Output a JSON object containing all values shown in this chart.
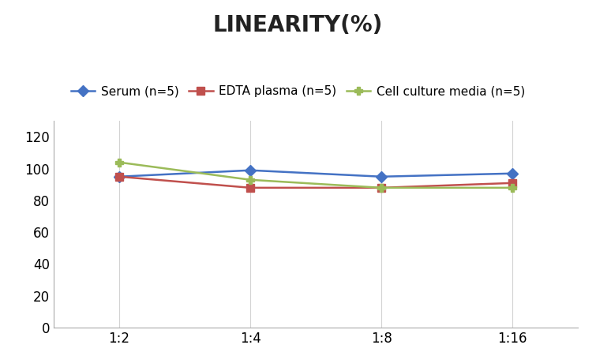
{
  "title": "LINEARITY(%)",
  "x_labels": [
    "1:2",
    "1:4",
    "1:8",
    "1:16"
  ],
  "x_positions": [
    0,
    1,
    2,
    3
  ],
  "series": [
    {
      "label": "Serum (n=5)",
      "color": "#4472C4",
      "marker": "D",
      "markersize": 7,
      "values": [
        95,
        99,
        95,
        97
      ]
    },
    {
      "label": "EDTA plasma (n=5)",
      "color": "#C0504D",
      "marker": "s",
      "markersize": 7,
      "values": [
        95,
        88,
        88,
        91
      ]
    },
    {
      "label": "Cell culture media (n=5)",
      "color": "#9BBB59",
      "marker": "P",
      "markersize": 7,
      "values": [
        104,
        93,
        88,
        88
      ]
    }
  ],
  "ylim": [
    0,
    130
  ],
  "yticks": [
    0,
    20,
    40,
    60,
    80,
    100,
    120
  ],
  "background_color": "#ffffff",
  "title_fontsize": 20,
  "legend_fontsize": 11,
  "tick_fontsize": 12,
  "grid_color": "#d3d3d3"
}
